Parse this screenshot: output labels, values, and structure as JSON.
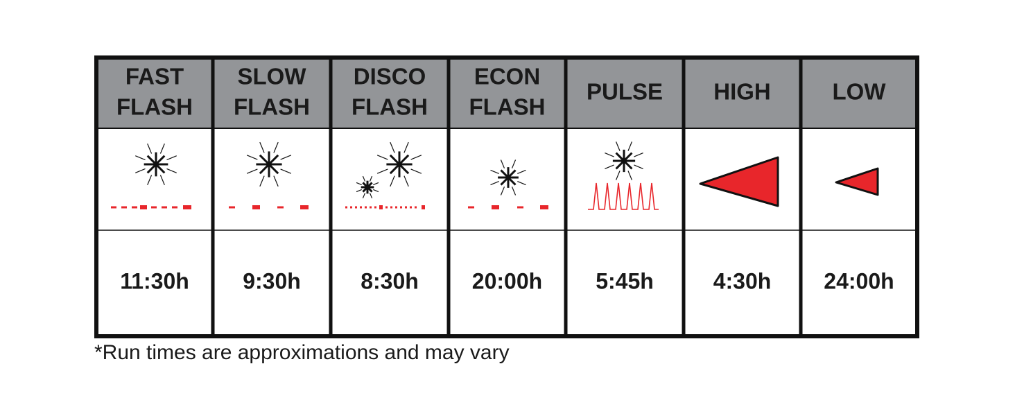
{
  "table": {
    "columns": [
      {
        "mode": [
          "FAST",
          "FLASH"
        ],
        "runtime": "11:30h"
      },
      {
        "mode": [
          "SLOW",
          "FLASH"
        ],
        "runtime": "9:30h"
      },
      {
        "mode": [
          "DISCO",
          "FLASH"
        ],
        "runtime": "8:30h"
      },
      {
        "mode": [
          "ECON",
          "FLASH"
        ],
        "runtime": "20:00h"
      },
      {
        "mode": [
          "PULSE"
        ],
        "runtime": "5:45h"
      },
      {
        "mode": [
          "HIGH"
        ],
        "runtime": "4:30h"
      },
      {
        "mode": [
          "LOW"
        ],
        "runtime": "24:00h"
      }
    ]
  },
  "footnote": "*Run times are approximations and may vary"
}
